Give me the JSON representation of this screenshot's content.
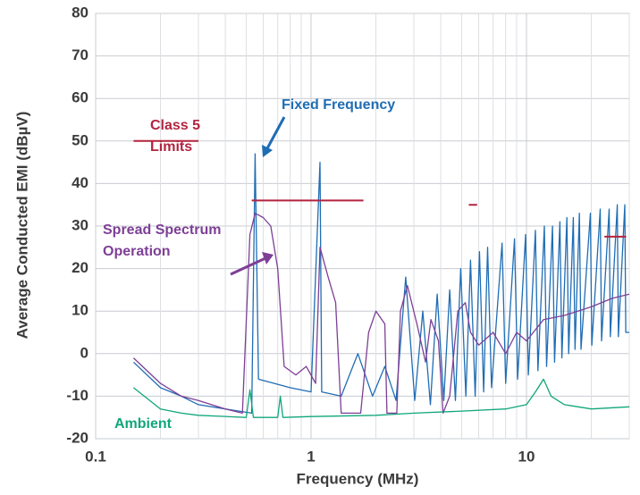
{
  "chart_data": {
    "type": "line",
    "x_label": "Frequency (MHz)",
    "y_label": "Average Conducted EMI (dBµV)",
    "xscale": "log",
    "xlim": [
      0.1,
      30
    ],
    "xticks": [
      0.1,
      1,
      10
    ],
    "xminorticks": [
      0.2,
      0.3,
      0.4,
      0.5,
      0.6,
      0.7,
      0.8,
      0.9,
      2,
      3,
      4,
      5,
      6,
      7,
      8,
      9,
      20,
      30
    ],
    "ylim": [
      -20,
      80
    ],
    "yticks": [
      -20,
      -10,
      0,
      10,
      20,
      30,
      40,
      50,
      60,
      70,
      80
    ],
    "grid": true,
    "series": [
      {
        "name": "Fixed Frequency",
        "color": "#1f6db4",
        "x": [
          0.15,
          0.2,
          0.25,
          0.3,
          0.4,
          0.53,
          0.55,
          0.57,
          0.8,
          1.0,
          1.1,
          1.12,
          1.38,
          1.65,
          1.93,
          2.2,
          2.48,
          2.75,
          3.03,
          3.3,
          3.58,
          3.85,
          4.13,
          4.4,
          4.68,
          4.95,
          5.23,
          5.5,
          5.78,
          6.05,
          6.33,
          6.6,
          6.88,
          7.7,
          8.0,
          8.8,
          9.1,
          9.9,
          10.2,
          11,
          11.3,
          12.1,
          12.4,
          13.2,
          13.5,
          14.3,
          14.6,
          15.4,
          15.7,
          16.5,
          16.8,
          17.6,
          17.9,
          19.8,
          20.1,
          22,
          22.3,
          24.2,
          24.5,
          26.4,
          26.7,
          28.6,
          28.9,
          30
        ],
        "values": [
          -2,
          -8,
          -10,
          -12,
          -13,
          -14,
          47,
          -6,
          -8,
          -9,
          45,
          -9,
          -10,
          0,
          -10,
          -3,
          -11,
          18,
          -11,
          10,
          -12,
          14,
          -11,
          15,
          -11,
          20,
          -10,
          22,
          -10,
          24,
          -9,
          25,
          -8,
          26,
          -7,
          27,
          -6,
          28,
          -5,
          29,
          -4,
          30,
          -3,
          30,
          -2,
          31,
          -1,
          32,
          0,
          32,
          1,
          33,
          1,
          33,
          2,
          34,
          3,
          34,
          4,
          35,
          4,
          35,
          5,
          5
        ]
      },
      {
        "name": "Spread Spectrum Operation",
        "color": "#7d3f96",
        "x": [
          0.15,
          0.2,
          0.25,
          0.3,
          0.4,
          0.48,
          0.52,
          0.55,
          0.6,
          0.65,
          0.7,
          0.75,
          0.85,
          0.95,
          1.05,
          1.1,
          1.2,
          1.3,
          1.38,
          1.7,
          1.85,
          2.0,
          2.2,
          2.25,
          2.5,
          2.6,
          2.8,
          3.1,
          3.4,
          3.6,
          3.9,
          4.1,
          4.4,
          4.8,
          5.2,
          5.5,
          6.0,
          7,
          8,
          9,
          10,
          12,
          15,
          20,
          25,
          30
        ],
        "values": [
          -1,
          -7,
          -10,
          -11,
          -13,
          -14,
          28,
          33,
          32,
          30,
          20,
          -3,
          -5,
          -3,
          -7,
          25,
          18,
          12,
          -14,
          -14,
          5,
          10,
          7,
          -14,
          -14,
          10,
          16,
          7,
          -2,
          8,
          3,
          -14,
          -10,
          10,
          12,
          5,
          2,
          5,
          0,
          5,
          3,
          8,
          9,
          11,
          13,
          14
        ]
      },
      {
        "name": "Ambient",
        "color": "#10a67a",
        "x": [
          0.15,
          0.2,
          0.25,
          0.3,
          0.5,
          0.52,
          0.54,
          0.7,
          0.72,
          0.74,
          1,
          2,
          3,
          5,
          8,
          10,
          11,
          12,
          13,
          15,
          20,
          30
        ],
        "values": [
          -8,
          -13,
          -14,
          -14.5,
          -15,
          -8.5,
          -15,
          -15,
          -10,
          -15,
          -14.8,
          -14.5,
          -14,
          -13.5,
          -13,
          -12,
          -9,
          -6,
          -10,
          -12,
          -13,
          -12.5
        ]
      },
      {
        "name": "Class 5 Limits",
        "color": "#b2243f",
        "x": [
          0.15,
          0.3,
          0.4,
          0.53,
          1.75,
          2,
          5.4,
          5.9,
          10,
          23,
          29
        ],
        "values": [
          50,
          50,
          null,
          36,
          36,
          null,
          35,
          35,
          null,
          27.5,
          27.5
        ]
      }
    ]
  }
}
